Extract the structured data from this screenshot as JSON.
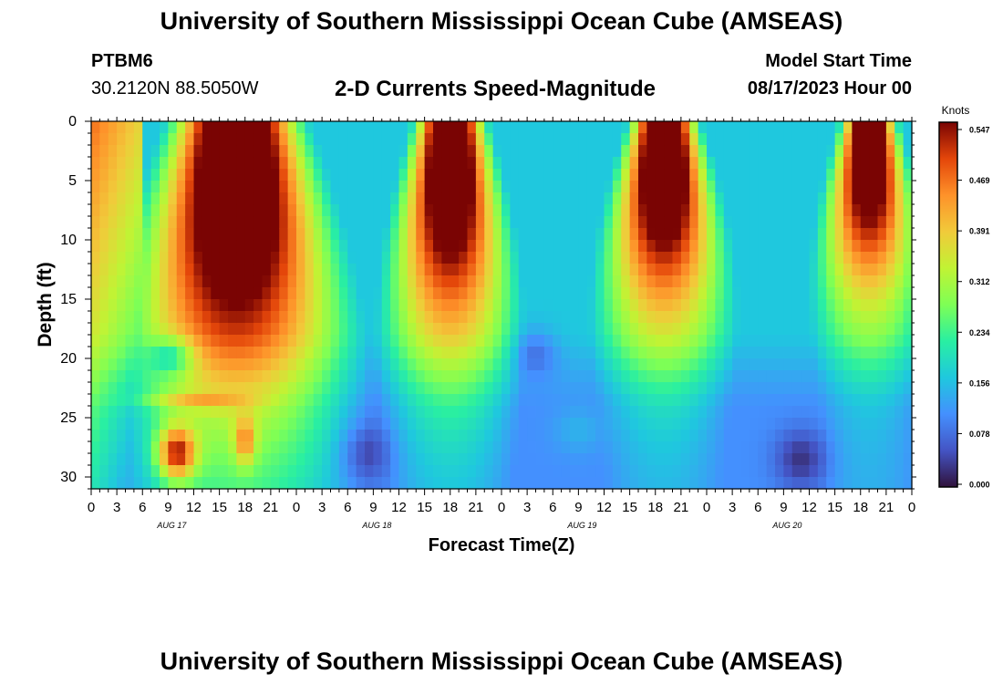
{
  "header": {
    "title": "University of Southern Mississippi Ocean Cube (AMSEAS)",
    "station_id": "PTBM6",
    "coords": "30.2120N  88.5050W",
    "subtitle": "2-D Currents Speed-Magnitude",
    "model_start_label": "Model Start Time",
    "model_start_value": "08/17/2023 Hour 00"
  },
  "footer": {
    "title": "University of Southern Mississippi Ocean Cube (AMSEAS)"
  },
  "chart_data": {
    "type": "heatmap",
    "title": "2-D Currents Speed-Magnitude",
    "xlabel": "Forecast Time(Z)",
    "ylabel": "Depth (ft)",
    "x_ticks": [
      "0",
      "3",
      "6",
      "9",
      "12",
      "15",
      "18",
      "21",
      "0",
      "3",
      "6",
      "9",
      "12",
      "15",
      "18",
      "21",
      "0",
      "3",
      "6",
      "9",
      "12",
      "15",
      "18",
      "21",
      "0",
      "3",
      "6",
      "9",
      "12",
      "15",
      "18",
      "21",
      "0"
    ],
    "x_range_hours": [
      0,
      96
    ],
    "y_ticks": [
      "0",
      "5",
      "10",
      "15",
      "20",
      "25",
      "30"
    ],
    "y_range_ft": [
      0,
      31
    ],
    "day_labels": [
      {
        "label": "AUG 17",
        "hour": 9
      },
      {
        "label": "AUG 18",
        "hour": 33
      },
      {
        "label": "AUG 19",
        "hour": 57
      },
      {
        "label": "AUG 20",
        "hour": 81
      }
    ],
    "colorbar": {
      "unit": "Knots",
      "min": 0.0,
      "max": 0.547,
      "ticks": [
        "0.547",
        "0.469",
        "0.391",
        "0.312",
        "0.234",
        "0.156",
        "0.078",
        "0.000"
      ]
    },
    "field_description": "Speed maxima near surface around hours 10-24, 40-46, 64-70, 88-94; weak flow near bottom"
  },
  "colors": {
    "low": "#30123b",
    "high": "#7a0403"
  }
}
